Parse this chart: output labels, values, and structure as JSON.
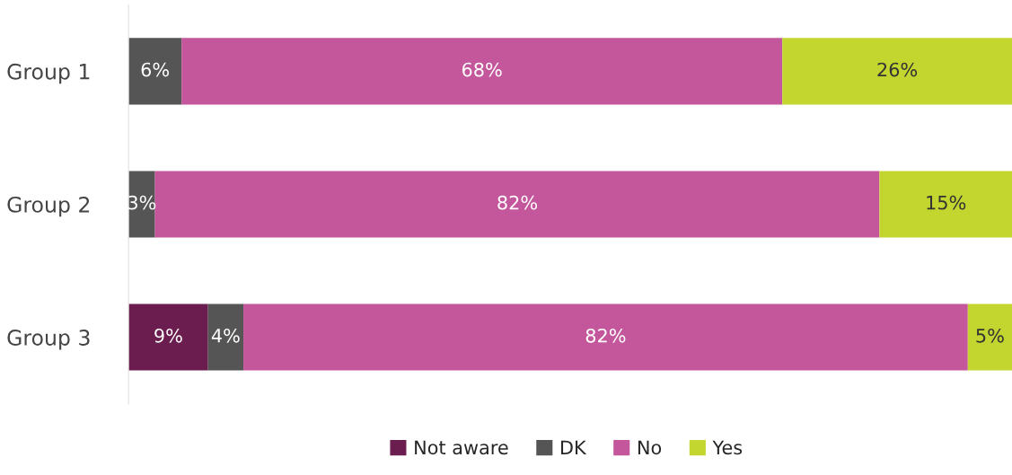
{
  "chart_data": {
    "type": "bar",
    "orientation": "horizontal",
    "stacked": true,
    "categories": [
      "Group 1",
      "Group 2",
      "Group 3"
    ],
    "series": [
      {
        "name": "Not aware",
        "color": "#6b1d4f",
        "values": [
          0,
          0,
          9
        ],
        "value_labels": [
          null,
          null,
          "9%"
        ]
      },
      {
        "name": "DK",
        "color": "#555555",
        "values": [
          6,
          3,
          4
        ],
        "value_labels": [
          "6%",
          "3%",
          "4%"
        ]
      },
      {
        "name": "No",
        "color": "#c4579b",
        "values": [
          68,
          82,
          82
        ],
        "value_labels": [
          "68%",
          "82%",
          "82%"
        ]
      },
      {
        "name": "Yes",
        "color": "#c3d62f",
        "values": [
          26,
          15,
          5
        ],
        "value_labels": [
          "26%",
          "15%",
          "5%"
        ]
      }
    ],
    "xlim": [
      0,
      100
    ],
    "tick_labels": "y",
    "legend": "bottom",
    "grid": false
  }
}
